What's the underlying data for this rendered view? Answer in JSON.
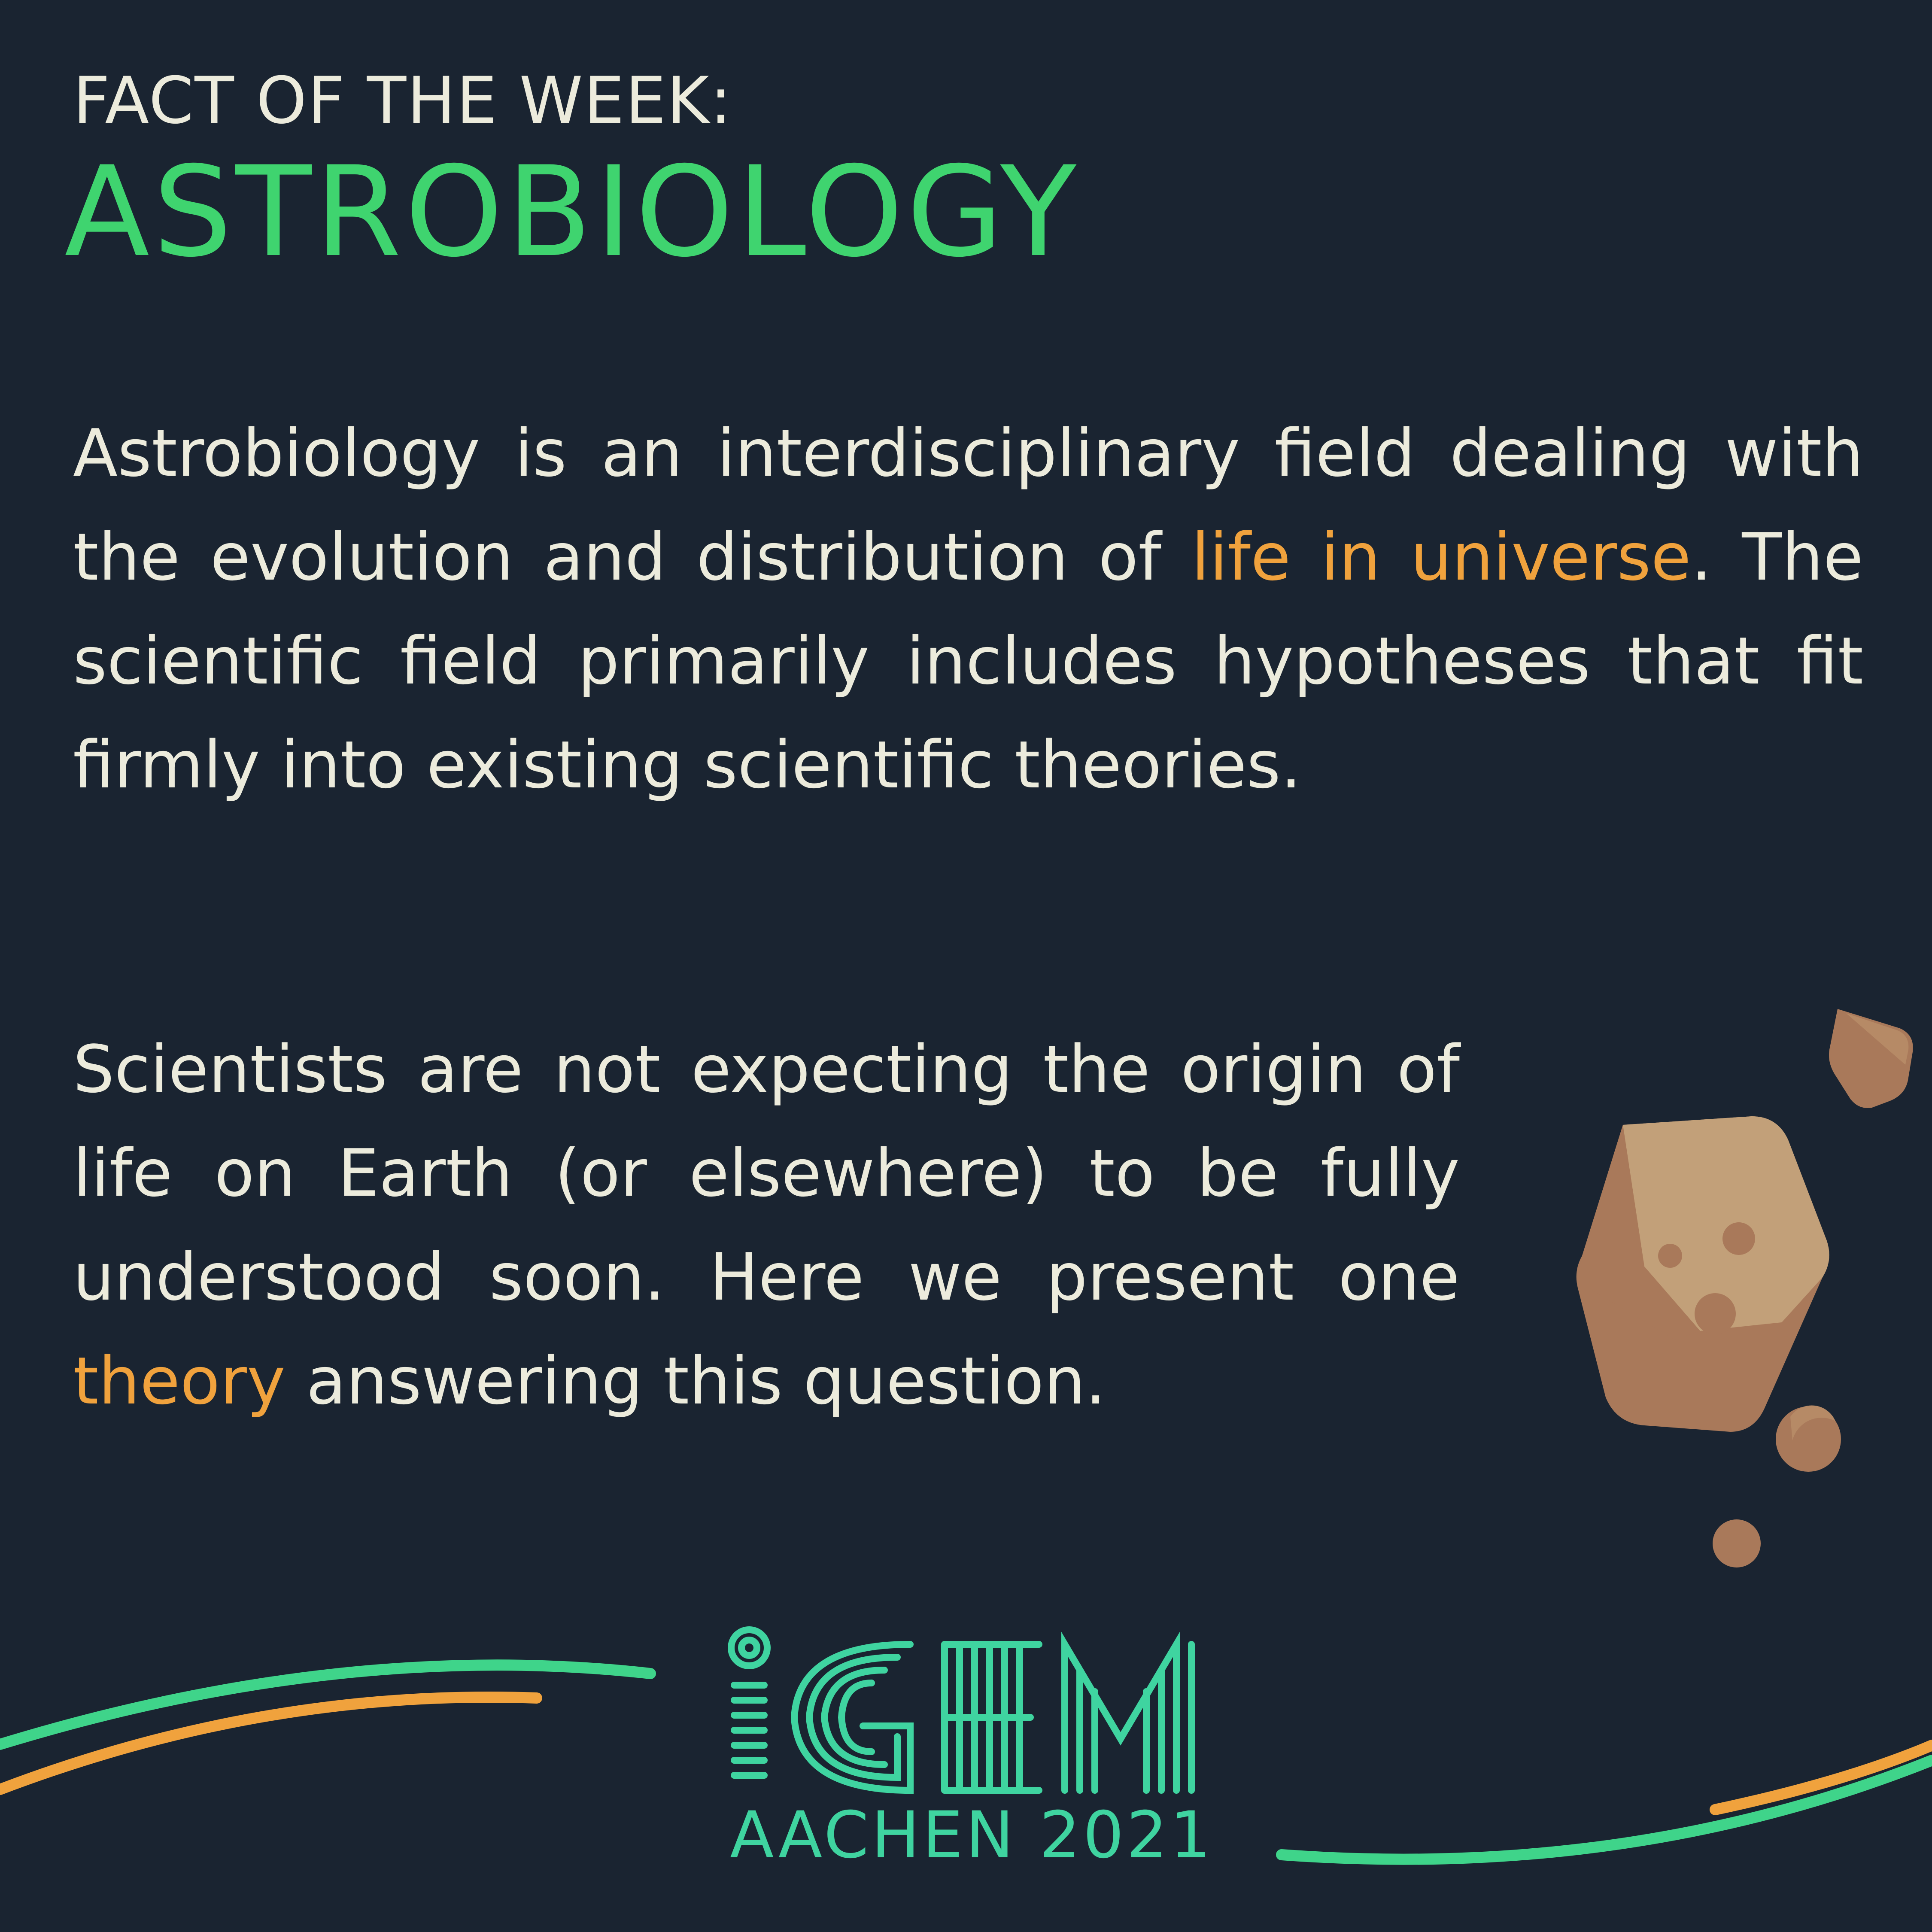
{
  "header": {
    "kicker": "FACT OF THE WEEK:",
    "title": "ASTROBIOLOGY"
  },
  "paragraph1": {
    "part1": "Astrobiology is an interdisciplinary field dea­ling with the evolution and distribution of ",
    "highlight": "life in universe",
    "part2": ". The scientific field primarily includes hypotheses that fit firmly into existing scienti­fic theories."
  },
  "paragraph2": {
    "part1": "Scientists are not expecting the origin of life on Earth (or elsewhere) to be fully understood soon. Here we present one ",
    "highlight": "theory",
    "part2": " answering this question."
  },
  "logo": {
    "wordmark": "iGEM",
    "subtitle": "AACHEN 2021"
  },
  "colors": {
    "background": "#1a2431",
    "text": "#ecebdc",
    "title_green": "#3fd46f",
    "highlight_orange": "#f0a23d",
    "logo_teal": "#3fd4a0",
    "rock_light": "#c2a079",
    "rock_dark": "#a9795a"
  },
  "decorations": {
    "icons": [
      "asteroid-large-icon",
      "asteroid-small-icon",
      "pebble-icon",
      "pebble-small-icon",
      "orbit-lines"
    ]
  }
}
